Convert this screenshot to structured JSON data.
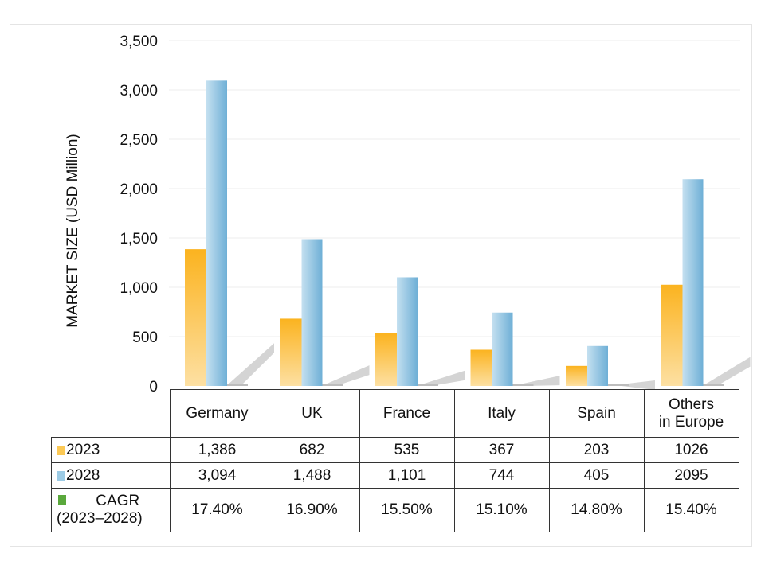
{
  "chart_data": {
    "type": "bar",
    "title": "",
    "xlabel": "",
    "ylabel": "MARKET SIZE (USD Million)",
    "ylim": [
      0,
      3500
    ],
    "yticks": [
      "0",
      "500",
      "1,000",
      "1,500",
      "2,000",
      "2,500",
      "3,000",
      "3,500"
    ],
    "ytick_values": [
      0,
      500,
      1000,
      1500,
      2000,
      2500,
      3000,
      3500
    ],
    "grid": true,
    "categories": [
      "Germany",
      "UK",
      "France",
      "Italy",
      "Spain",
      "Others in Europe"
    ],
    "category_lines": [
      [
        "Germany"
      ],
      [
        "UK"
      ],
      [
        "France"
      ],
      [
        "Italy"
      ],
      [
        "Spain"
      ],
      [
        "Others",
        "in Europe"
      ]
    ],
    "series": [
      {
        "name": "2023",
        "values": [
          1386,
          682,
          535,
          367,
          203,
          1026
        ],
        "labels": [
          "1,386",
          "682",
          "535",
          "367",
          "203",
          "1026"
        ],
        "color": "#fbb92f"
      },
      {
        "name": "2028",
        "values": [
          3094,
          1488,
          1101,
          744,
          405,
          2095
        ],
        "labels": [
          "3,094",
          "1,488",
          "1,101",
          "744",
          "405",
          "2095"
        ],
        "color": "#7fbadb"
      },
      {
        "name": "CAGR",
        "name_line2": "(2023–2028)",
        "values": [
          17.4,
          16.9,
          15.5,
          15.1,
          14.8,
          15.4
        ],
        "labels": [
          "17.40%",
          "16.90%",
          "15.50%",
          "15.10%",
          "14.80%",
          "15.40%"
        ],
        "color": "#5aa83c"
      }
    ],
    "legend": "data-table"
  }
}
